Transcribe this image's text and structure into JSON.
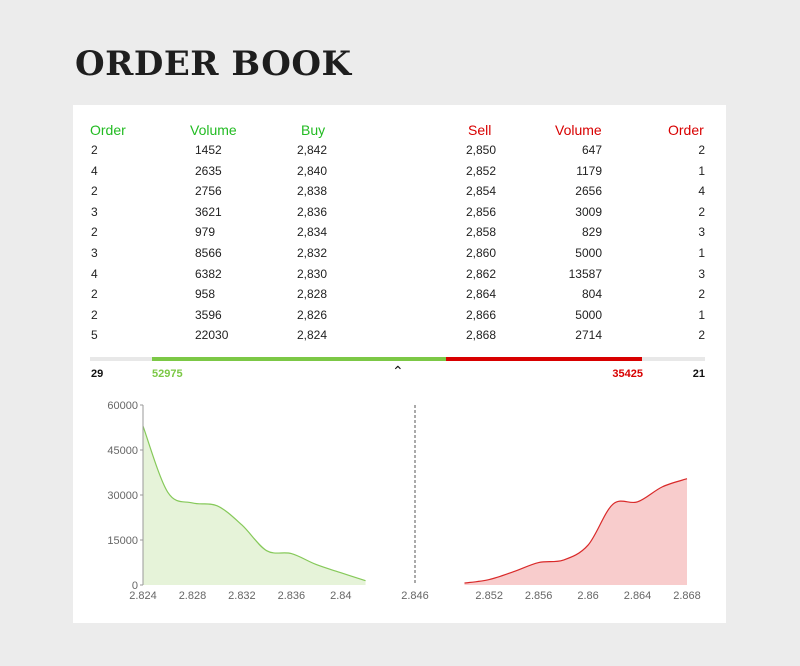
{
  "page_title": "ORDER BOOK",
  "headers": {
    "buy_order": "Order",
    "buy_volume": "Volume",
    "buy_price": "Buy",
    "sell_price": "Sell",
    "sell_volume": "Volume",
    "sell_order": "Order"
  },
  "buy_rows": [
    {
      "order": "2",
      "volume": "1452",
      "price": "2,842"
    },
    {
      "order": "4",
      "volume": "2635",
      "price": "2,840"
    },
    {
      "order": "2",
      "volume": "2756",
      "price": "2,838"
    },
    {
      "order": "3",
      "volume": "3621",
      "price": "2,836"
    },
    {
      "order": "2",
      "volume": "979",
      "price": "2,834"
    },
    {
      "order": "3",
      "volume": "8566",
      "price": "2,832"
    },
    {
      "order": "4",
      "volume": "6382",
      "price": "2,830"
    },
    {
      "order": "2",
      "volume": "958",
      "price": "2,828"
    },
    {
      "order": "2",
      "volume": "3596",
      "price": "2,826"
    },
    {
      "order": "5",
      "volume": "22030",
      "price": "2,824"
    }
  ],
  "sell_rows": [
    {
      "price": "2,850",
      "volume": "647",
      "order": "2"
    },
    {
      "price": "2,852",
      "volume": "1179",
      "order": "1"
    },
    {
      "price": "2,854",
      "volume": "2656",
      "order": "4"
    },
    {
      "price": "2,856",
      "volume": "3009",
      "order": "2"
    },
    {
      "price": "2,858",
      "volume": "829",
      "order": "3"
    },
    {
      "price": "2,860",
      "volume": "5000",
      "order": "1"
    },
    {
      "price": "2,862",
      "volume": "13587",
      "order": "3"
    },
    {
      "price": "2,864",
      "volume": "804",
      "order": "2"
    },
    {
      "price": "2,866",
      "volume": "5000",
      "order": "1"
    },
    {
      "price": "2,868",
      "volume": "2714",
      "order": "2"
    }
  ],
  "totals": {
    "buy_orders": "29",
    "buy_volume": "52975",
    "sell_volume": "35425",
    "sell_orders": "21",
    "buy_share": 0.599
  },
  "toggle_icon": "chevron-up-icon",
  "colors": {
    "buy": "#22bb22",
    "sell": "#d80000",
    "buy_bar": "#7cc846",
    "buy_fill": "#e6f3d9",
    "sell_fill": "#f8cccc"
  },
  "chart_data": {
    "type": "area",
    "ylim": [
      0,
      60000
    ],
    "xlim": [
      2.824,
      2.868
    ],
    "yticks": [
      0,
      15000,
      30000,
      45000,
      60000
    ],
    "ytick_labels": [
      "0",
      "15000",
      "30000",
      "45000",
      "60000"
    ],
    "xticks": [
      2.824,
      2.828,
      2.832,
      2.836,
      2.84,
      2.846,
      2.852,
      2.856,
      2.86,
      2.864,
      2.868
    ],
    "xtick_labels": [
      "2.824",
      "2.828",
      "2.832",
      "2.836",
      "2.84",
      "2.846",
      "2.852",
      "2.856",
      "2.86",
      "2.864",
      "2.868"
    ],
    "mid_price": 2.846,
    "series": [
      {
        "side": "buy",
        "x": [
          2.824,
          2.826,
          2.828,
          2.83,
          2.832,
          2.834,
          2.836,
          2.838,
          2.84,
          2.842
        ],
        "values": [
          52975,
          30945,
          27349,
          26391,
          20009,
          11443,
          10464,
          6843,
          4087,
          1452
        ]
      },
      {
        "side": "sell",
        "x": [
          2.85,
          2.852,
          2.854,
          2.856,
          2.858,
          2.86,
          2.862,
          2.864,
          2.866,
          2.868
        ],
        "values": [
          647,
          1826,
          4482,
          7491,
          8320,
          13320,
          26907,
          27711,
          32711,
          35425
        ]
      }
    ]
  }
}
